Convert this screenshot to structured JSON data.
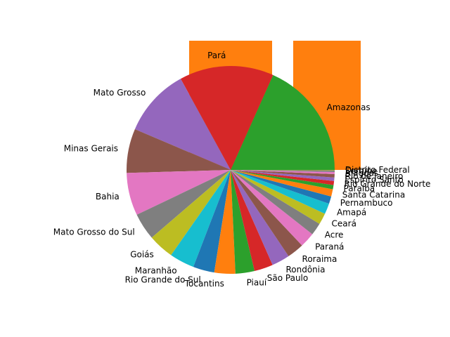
{
  "chart_data": {
    "type": "pie",
    "title": "",
    "start_angle_deg": 0,
    "direction": "counterclockwise",
    "categories": [
      "Amazonas",
      "Pará",
      "Mato Grosso",
      "Minas Gerais",
      "Bahia",
      "Mato Grosso do Sul",
      "Goiás",
      "Maranhão",
      "Rio Grande do Sul",
      "Tocantins",
      "Piauí",
      "São Paulo",
      "Rondônia",
      "Roraima",
      "Paraná",
      "Acre",
      "Ceará",
      "Amapá",
      "Pernambuco",
      "Santa Catarina",
      "Paraíba",
      "Rio Grande do Norte",
      "Espírito Santo",
      "Rio de Janeiro",
      "Alagoas",
      "Sergipe",
      "Distrito Federal"
    ],
    "values": [
      1559.2,
      1248.0,
      903.2,
      586.5,
      564.7,
      357.1,
      340.1,
      329.6,
      281.7,
      277.6,
      251.6,
      248.2,
      237.8,
      224.3,
      199.3,
      164.1,
      148.9,
      142.8,
      98.1,
      95.7,
      56.5,
      52.8,
      46.1,
      43.8,
      27.8,
      21.9,
      5.8
    ],
    "colors": [
      "#2ca02c",
      "#d62728",
      "#9467bd",
      "#8c564b",
      "#e377c2",
      "#7f7f7f",
      "#bcbd22",
      "#17becf",
      "#1f77b4",
      "#ff7f0e",
      "#2ca02c",
      "#d62728",
      "#9467bd",
      "#8c564b",
      "#e377c2",
      "#7f7f7f",
      "#bcbd22",
      "#17becf",
      "#1f77b4",
      "#ff7f0e",
      "#2ca02c",
      "#d62728",
      "#9467bd",
      "#8c564b",
      "#e377c2",
      "#7f7f7f",
      "#bcbd22"
    ],
    "background_bars_color": "#ff7f0e"
  }
}
